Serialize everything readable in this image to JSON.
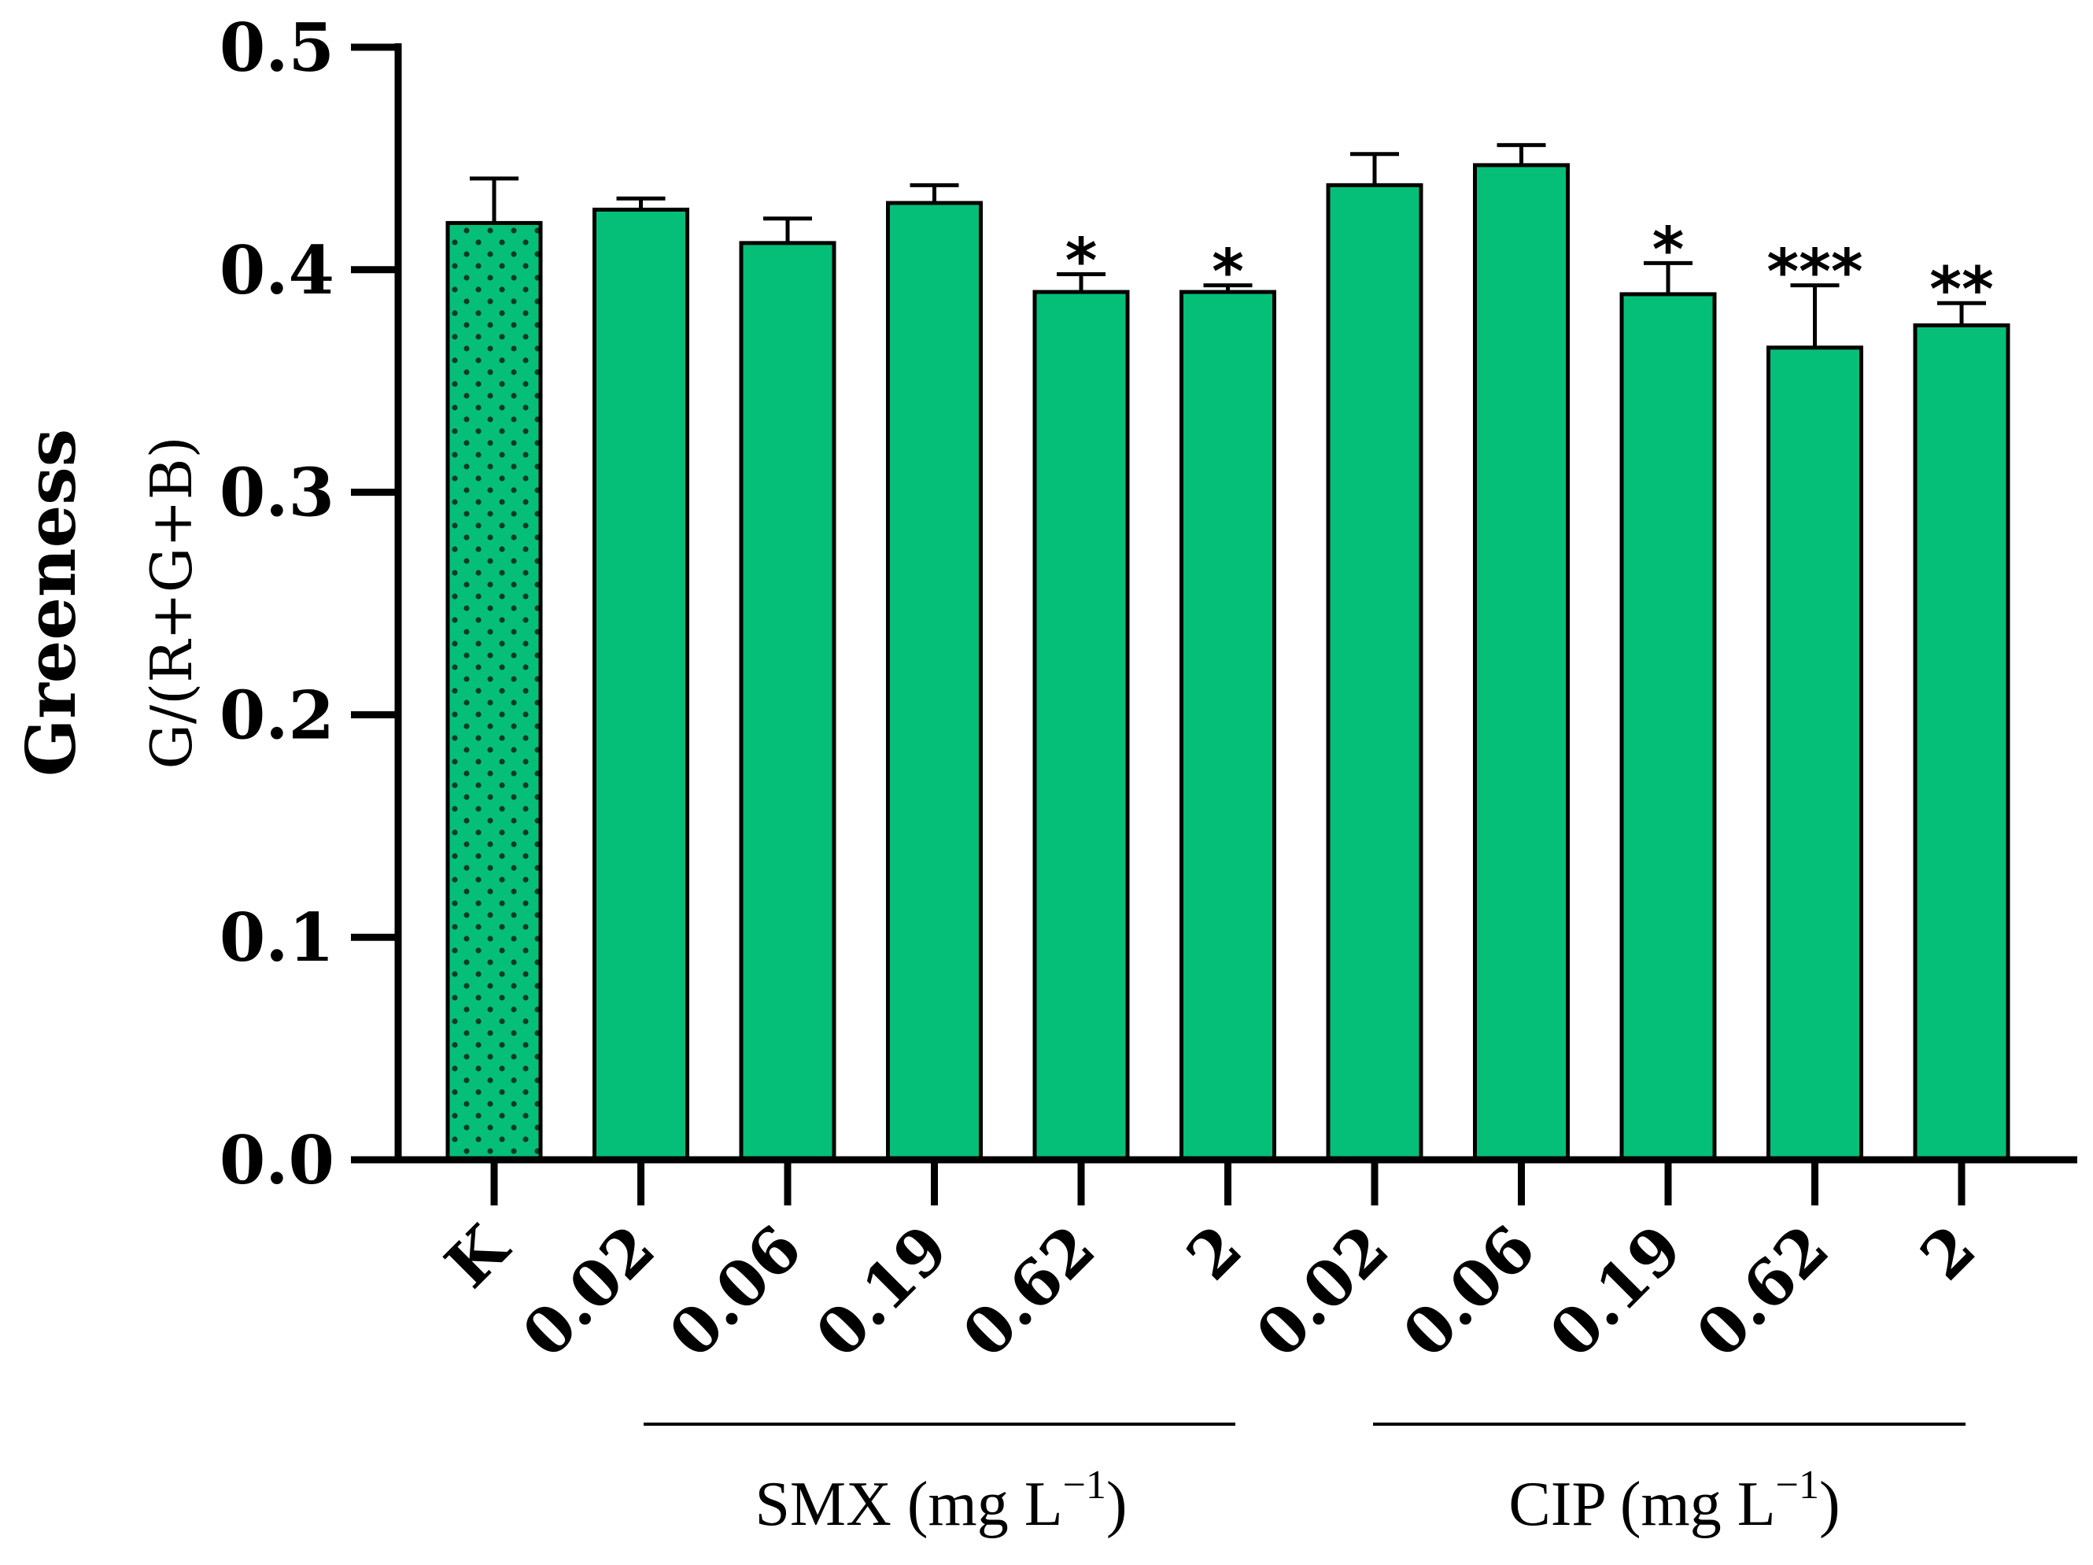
{
  "chart_data": {
    "type": "bar",
    "title": "",
    "ylabel": "Greeness",
    "ylabel_sub": "G/(R+G+B)",
    "xlabel": "",
    "ylim": [
      0,
      0.5
    ],
    "yticks": [
      "0.0",
      "0.1",
      "0.2",
      "0.3",
      "0.4",
      "0.5"
    ],
    "categories": [
      "K",
      "0.02",
      "0.06",
      "0.19",
      "0.62",
      "2",
      "0.02",
      "0.06",
      "0.19",
      "0.62",
      "2"
    ],
    "values": [
      0.421,
      0.427,
      0.412,
      0.43,
      0.39,
      0.39,
      0.438,
      0.447,
      0.389,
      0.365,
      0.375
    ],
    "errors": [
      0.02,
      0.005,
      0.011,
      0.008,
      0.008,
      0.003,
      0.014,
      0.009,
      0.014,
      0.028,
      0.01
    ],
    "significance": [
      "",
      "",
      "",
      "",
      "*",
      "*",
      "",
      "",
      "*",
      "***",
      "**"
    ],
    "groups": [
      {
        "label": "SMX (mg L",
        "superscript": "−1",
        "close": ")",
        "start": 1,
        "end": 5
      },
      {
        "label": "CIP (mg L",
        "superscript": "−1",
        "close": ")",
        "start": 6,
        "end": 10
      }
    ],
    "bar_color": "#05bf78",
    "control_pattern": "dotted"
  }
}
